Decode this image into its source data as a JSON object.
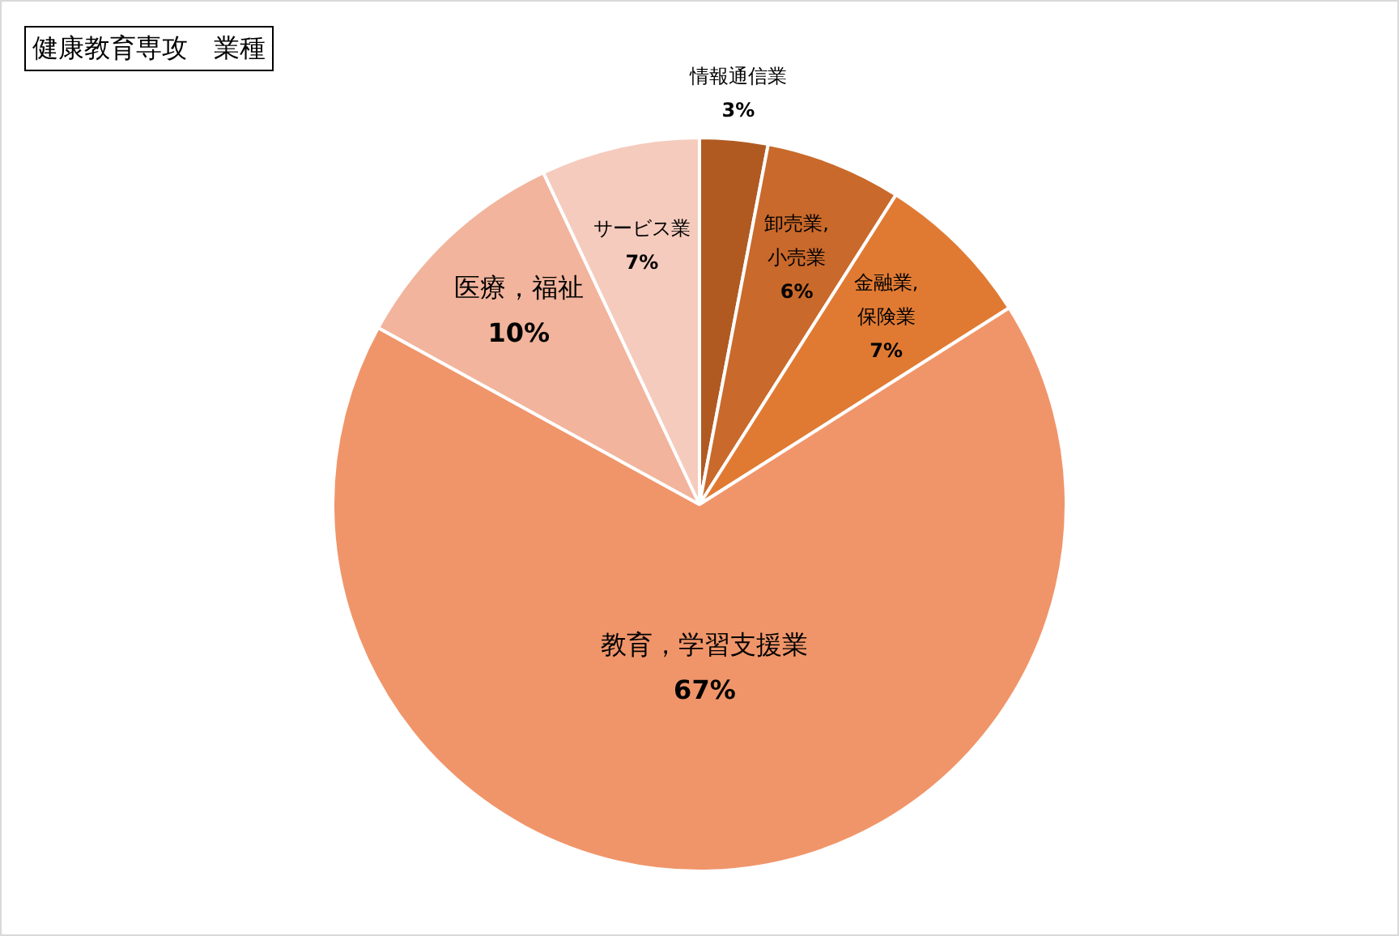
{
  "chart_data": {
    "type": "pie",
    "title": "健康教育専攻　業種",
    "categories": [
      "情報通信業",
      "卸売業,小売業",
      "金融業,保険業",
      "教育，学習支援業",
      "医療，福祉",
      "サービス業"
    ],
    "values": [
      3,
      6,
      7,
      67,
      10,
      7
    ],
    "value_labels": [
      "3%",
      "6%",
      "7%",
      "67%",
      "10%",
      "7%"
    ],
    "colors": [
      "#b05a22",
      "#c9692b",
      "#e07a33",
      "#f0956a",
      "#f2b49c",
      "#f5cbbd"
    ],
    "legend": false
  }
}
